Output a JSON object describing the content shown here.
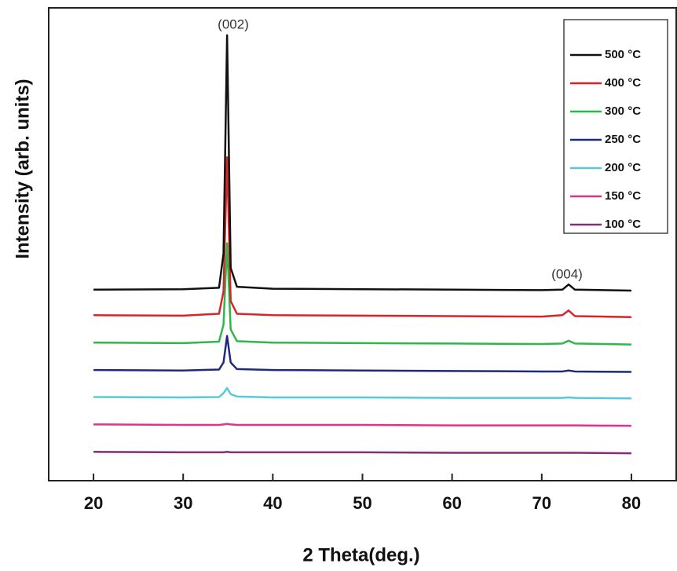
{
  "chart_data": {
    "type": "line",
    "xlabel": "2 Theta(deg.)",
    "ylabel": "Intensity (arb. units)",
    "annotations": [
      "(002)",
      "(004)"
    ],
    "x": [
      20,
      30,
      34,
      34.5,
      34.9,
      35.3,
      36,
      40,
      50,
      60,
      70,
      72.3,
      73,
      73.7,
      80
    ],
    "series": [
      {
        "name": "500 °C",
        "color": "#111111",
        "values": [
          40.4,
          40.5,
          40.8,
          48,
          94.2,
          45,
          41,
          40.6,
          40.5,
          40.4,
          40.3,
          40.4,
          41.5,
          40.4,
          40.2
        ]
      },
      {
        "name": "400 °C",
        "color": "#d6262a",
        "values": [
          35,
          34.9,
          35.3,
          40,
          68.4,
          38,
          35.3,
          35,
          34.9,
          34.8,
          34.7,
          35,
          36,
          34.8,
          34.6
        ]
      },
      {
        "name": "300 °C",
        "color": "#2db84a",
        "values": [
          29.2,
          29.1,
          29.4,
          33,
          50.2,
          32,
          29.5,
          29.2,
          29.1,
          29,
          28.9,
          29,
          29.6,
          29,
          28.8
        ]
      },
      {
        "name": "250 °C",
        "color": "#1e2a7a",
        "values": [
          23.4,
          23.3,
          23.5,
          25,
          30.6,
          25,
          23.6,
          23.4,
          23.3,
          23.2,
          23.1,
          23.1,
          23.3,
          23.1,
          23
        ]
      },
      {
        "name": "200 °C",
        "color": "#5cc8d6",
        "values": [
          17.7,
          17.6,
          17.7,
          18.5,
          19.6,
          18.3,
          17.8,
          17.6,
          17.6,
          17.5,
          17.5,
          17.5,
          17.6,
          17.5,
          17.4
        ]
      },
      {
        "name": "150 °C",
        "color": "#e0338f",
        "values": [
          11.9,
          11.8,
          11.8,
          11.9,
          12,
          11.9,
          11.8,
          11.8,
          11.8,
          11.7,
          11.7,
          11.7,
          11.7,
          11.7,
          11.6
        ]
      },
      {
        "name": "100 °C",
        "color": "#8a2a7a",
        "values": [
          6.1,
          6,
          6,
          6,
          6.1,
          6,
          6,
          6,
          6,
          5.9,
          5.9,
          5.9,
          5.9,
          5.9,
          5.8
        ]
      }
    ],
    "xlim": [
      15,
      85
    ],
    "xticks": [
      20,
      30,
      40,
      50,
      60,
      70,
      80
    ],
    "ylim": [
      0,
      100
    ],
    "legend": "upper right"
  }
}
